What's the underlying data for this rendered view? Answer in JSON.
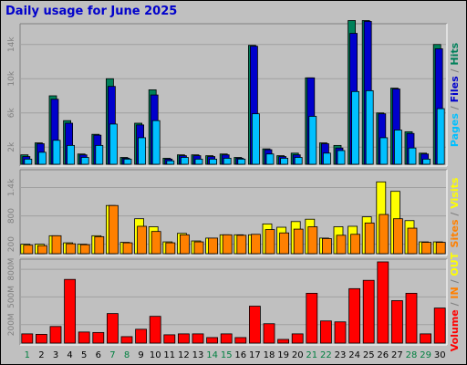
{
  "chart_data": {
    "type": "bar",
    "title": "Daily usage for June 2025",
    "days": [
      "1",
      "2",
      "3",
      "4",
      "5",
      "6",
      "7",
      "8",
      "9",
      "10",
      "11",
      "12",
      "13",
      "14",
      "15",
      "16",
      "17",
      "18",
      "19",
      "20",
      "21",
      "22",
      "23",
      "24",
      "25",
      "26",
      "27",
      "28",
      "29",
      "30"
    ],
    "weekend_days": [
      "1",
      "7",
      "8",
      "14",
      "15",
      "21",
      "22",
      "28",
      "29"
    ],
    "colors": {
      "weekday_label": "#000000",
      "weekend_label": "#008040",
      "hits": "#00805a",
      "files": "#0000cc",
      "pages": "#00c0ff",
      "visits": "#ffff00",
      "sites": "#ff8000",
      "kbytes": "#ff0000",
      "in": "#ff8000",
      "out": "#ffff00",
      "title": "#0000cc"
    },
    "panels": [
      {
        "id": "hits-files-pages",
        "ylabels": [
          "2k",
          "6k",
          "10k",
          "14k"
        ],
        "yticks": [
          2000,
          6000,
          10000,
          14000
        ],
        "ymax": 16000,
        "legend": [
          {
            "text": "Hits",
            "color": "#00805a"
          },
          {
            "text": "Files",
            "color": "#0000cc"
          },
          {
            "text": "Pages",
            "color": "#00c0ff"
          }
        ],
        "series": [
          {
            "name": "Hits",
            "color": "#00805a",
            "values": [
              1100,
              2500,
              8000,
              5100,
              1200,
              3500,
              10000,
              800,
              4800,
              8700,
              700,
              1100,
              1100,
              1000,
              1200,
              800,
              13900,
              1800,
              1000,
              1300,
              10100,
              2500,
              2200,
              16800,
              16800,
              6000,
              8900,
              3800,
              1300,
              14000
            ]
          },
          {
            "name": "Files",
            "color": "#0000cc",
            "values": [
              900,
              2400,
              7600,
              4800,
              1100,
              3400,
              9100,
              700,
              4600,
              8100,
              600,
              1000,
              1000,
              900,
              1100,
              700,
              13800,
              1700,
              900,
              1100,
              10100,
              2400,
              1900,
              15300,
              16700,
              5900,
              8800,
              3600,
              1200,
              13500
            ]
          },
          {
            "name": "Pages",
            "color": "#00c0ff",
            "values": [
              600,
              1400,
              2800,
              2200,
              800,
              2200,
              4700,
              600,
              3100,
              5100,
              400,
              800,
              600,
              600,
              700,
              600,
              5900,
              1200,
              700,
              800,
              5600,
              1300,
              1600,
              8500,
              8600,
              3100,
              4000,
              1900,
              600,
              6500
            ]
          }
        ]
      },
      {
        "id": "visits-sites",
        "ylabels": [
          "200",
          "800",
          "1.4k"
        ],
        "yticks": [
          200,
          800,
          1400
        ],
        "ymax": 1700,
        "legend": [
          {
            "text": "Sites",
            "color": "#ff8000"
          },
          {
            "text": "Visits",
            "color": "#ffff00"
          }
        ],
        "series": [
          {
            "name": "Visits",
            "color": "#ffff00",
            "values": [
              200,
              200,
              380,
              230,
              200,
              380,
              1020,
              240,
              740,
              570,
              250,
              430,
              270,
              330,
              400,
              400,
              400,
              630,
              560,
              680,
              730,
              330,
              570,
              580,
              780,
              1520,
              1320,
              700,
              250,
              250
            ]
          },
          {
            "name": "Sites",
            "color": "#ff8000",
            "values": [
              180,
              170,
              380,
              210,
              190,
              360,
              1020,
              230,
              580,
              470,
              230,
              400,
              250,
              330,
              400,
              390,
              410,
              510,
              440,
              520,
              570,
              320,
              390,
              410,
              650,
              830,
              740,
              540,
              240,
              240
            ]
          }
        ]
      },
      {
        "id": "volume",
        "ylabels": [
          "200M",
          "500M",
          "800M"
        ],
        "yticks": [
          200,
          500,
          800
        ],
        "ymax": 870,
        "legend": [
          {
            "text": "Volume",
            "color": "#ff0000"
          },
          {
            "text": "IN",
            "color": "#ff8000"
          },
          {
            "text": "OUT",
            "color": "#ffff00"
          }
        ],
        "series": [
          {
            "name": "Volume",
            "color": "#ff0000",
            "values": [
              100,
              95,
              180,
              690,
              120,
              115,
              320,
              70,
              150,
              290,
              90,
              100,
              100,
              60,
              100,
              60,
              400,
              210,
              40,
              100,
              540,
              240,
              230,
              590,
              680,
              880,
              460,
              540,
              100,
              380
            ]
          }
        ]
      }
    ],
    "layout_legend": {
      "top": [
        [
          "Pages",
          "#00c0ff"
        ],
        [
          " / ",
          "#808080"
        ],
        [
          "Files",
          "#0000cc"
        ],
        [
          " / ",
          "#808080"
        ],
        [
          "Hits",
          "#00805a"
        ]
      ],
      "mid": [
        [
          "Sites",
          "#ff8000"
        ],
        [
          " / ",
          "#808080"
        ],
        [
          "Visits",
          "#ffff00"
        ]
      ],
      "bot": [
        [
          "Volume",
          "#ff0000"
        ],
        [
          " / ",
          "#808080"
        ],
        [
          "IN",
          "#ff8000"
        ],
        [
          " / ",
          "#808080"
        ],
        [
          "OUT",
          "#ffff00"
        ]
      ]
    }
  }
}
